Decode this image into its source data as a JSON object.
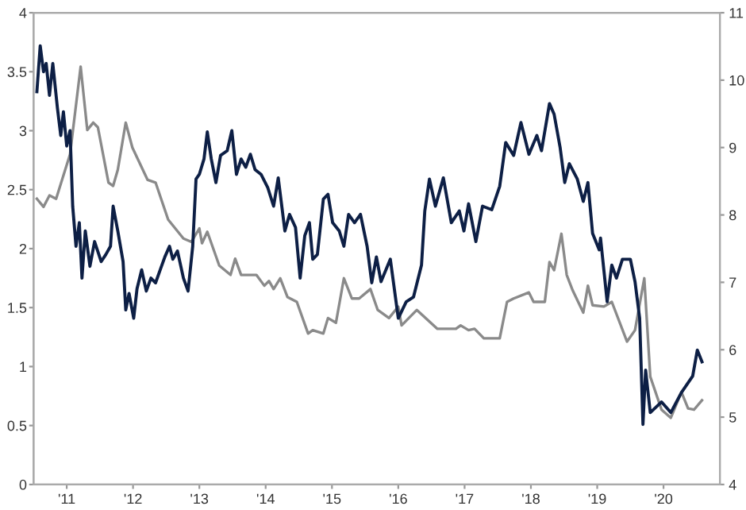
{
  "chart_data": {
    "type": "line",
    "xlim": [
      2010.5,
      2020.85
    ],
    "xticks": [
      {
        "value": 2011,
        "label": "'11"
      },
      {
        "value": 2012,
        "label": "'12"
      },
      {
        "value": 2013,
        "label": "'13"
      },
      {
        "value": 2014,
        "label": "'14"
      },
      {
        "value": 2015,
        "label": "'15"
      },
      {
        "value": 2016,
        "label": "'16"
      },
      {
        "value": 2017,
        "label": "'17"
      },
      {
        "value": 2018,
        "label": "'18"
      },
      {
        "value": 2019,
        "label": "'19"
      },
      {
        "value": 2020,
        "label": "'20"
      }
    ],
    "ylim": [
      0,
      4
    ],
    "yticks": [
      0,
      0.5,
      1,
      1.5,
      2,
      2.5,
      3,
      3.5,
      4
    ],
    "y2lim": [
      4,
      11
    ],
    "y2ticks": [
      4,
      5,
      6,
      7,
      8,
      9,
      10,
      11
    ],
    "grid": false,
    "series": [
      {
        "color": "#0d1f45",
        "axis": "y",
        "x": [
          2010.55,
          2010.6,
          2010.65,
          2010.69,
          2010.74,
          2010.79,
          2010.86,
          2010.91,
          2010.95,
          2011.0,
          2011.05,
          2011.09,
          2011.14,
          2011.19,
          2011.23,
          2011.28,
          2011.35,
          2011.42,
          2011.52,
          2011.59,
          2011.66,
          2011.7,
          2011.77,
          2011.85,
          2011.89,
          2011.94,
          2012.01,
          2012.06,
          2012.13,
          2012.2,
          2012.27,
          2012.34,
          2012.41,
          2012.48,
          2012.55,
          2012.6,
          2012.67,
          2012.76,
          2012.83,
          2012.9,
          2012.95,
          2013.0,
          2013.07,
          2013.12,
          2013.18,
          2013.25,
          2013.32,
          2013.42,
          2013.49,
          2013.56,
          2013.63,
          2013.7,
          2013.77,
          2013.84,
          2013.93,
          2014.03,
          2014.12,
          2014.19,
          2014.29,
          2014.36,
          2014.45,
          2014.52,
          2014.59,
          2014.66,
          2014.71,
          2014.78,
          2014.87,
          2014.94,
          2015.01,
          2015.11,
          2015.18,
          2015.25,
          2015.34,
          2015.43,
          2015.53,
          2015.6,
          2015.67,
          2015.74,
          2015.88,
          2016.0,
          2016.12,
          2016.23,
          2016.35,
          2016.4,
          2016.47,
          2016.56,
          2016.68,
          2016.8,
          2016.92,
          2016.99,
          2017.06,
          2017.17,
          2017.27,
          2017.41,
          2017.53,
          2017.62,
          2017.74,
          2017.85,
          2017.97,
          2018.09,
          2018.16,
          2018.28,
          2018.35,
          2018.44,
          2018.51,
          2018.58,
          2018.7,
          2018.79,
          2018.86,
          2018.93,
          2019.03,
          2019.05,
          2019.15,
          2019.22,
          2019.29,
          2019.38,
          2019.5,
          2019.57,
          2019.64,
          2019.69,
          2019.73,
          2019.8,
          2019.97,
          2020.11,
          2020.27,
          2020.44,
          2020.51,
          2020.58
        ],
        "values": [
          3.33,
          3.72,
          3.5,
          3.57,
          3.3,
          3.57,
          3.19,
          2.96,
          3.16,
          2.87,
          3.0,
          2.36,
          2.02,
          2.22,
          1.75,
          2.15,
          1.85,
          2.06,
          1.89,
          1.95,
          2.02,
          2.36,
          2.15,
          1.89,
          1.48,
          1.62,
          1.41,
          1.66,
          1.82,
          1.64,
          1.75,
          1.71,
          1.82,
          1.93,
          2.02,
          1.91,
          1.98,
          1.75,
          1.64,
          2.02,
          2.59,
          2.63,
          2.76,
          2.99,
          2.76,
          2.56,
          2.79,
          2.83,
          3.0,
          2.63,
          2.76,
          2.69,
          2.8,
          2.67,
          2.63,
          2.52,
          2.36,
          2.6,
          2.15,
          2.29,
          2.18,
          1.75,
          2.11,
          2.22,
          1.91,
          1.95,
          2.42,
          2.46,
          2.22,
          2.15,
          2.02,
          2.29,
          2.22,
          2.29,
          2.02,
          1.71,
          1.93,
          1.72,
          1.91,
          1.41,
          1.55,
          1.59,
          1.86,
          2.32,
          2.59,
          2.36,
          2.6,
          2.22,
          2.32,
          2.15,
          2.38,
          2.06,
          2.36,
          2.33,
          2.53,
          2.9,
          2.79,
          3.07,
          2.8,
          2.96,
          2.83,
          3.23,
          3.14,
          2.86,
          2.56,
          2.72,
          2.59,
          2.4,
          2.56,
          2.13,
          1.99,
          2.09,
          1.55,
          1.86,
          1.75,
          1.91,
          1.91,
          1.72,
          1.41,
          0.51,
          0.97,
          0.61,
          0.7,
          0.61,
          0.78,
          0.92,
          1.14,
          1.04
        ]
      },
      {
        "color": "#8a8a8a",
        "axis": "y2",
        "x": [
          2010.55,
          2010.65,
          2010.74,
          2010.84,
          2011.05,
          2011.21,
          2011.31,
          2011.4,
          2011.47,
          2011.63,
          2011.7,
          2011.77,
          2011.89,
          2011.99,
          2012.22,
          2012.34,
          2012.53,
          2012.76,
          2012.88,
          2013.0,
          2013.04,
          2013.12,
          2013.3,
          2013.47,
          2013.54,
          2013.63,
          2013.86,
          2013.98,
          2014.05,
          2014.12,
          2014.22,
          2014.33,
          2014.47,
          2014.64,
          2014.71,
          2014.87,
          2014.94,
          2015.06,
          2015.18,
          2015.3,
          2015.41,
          2015.58,
          2015.69,
          2015.86,
          2016.0,
          2016.05,
          2016.28,
          2016.59,
          2016.87,
          2016.94,
          2017.06,
          2017.15,
          2017.29,
          2017.53,
          2017.64,
          2017.74,
          2017.97,
          2018.04,
          2018.21,
          2018.28,
          2018.35,
          2018.46,
          2018.54,
          2018.63,
          2018.79,
          2018.86,
          2018.93,
          2019.1,
          2019.22,
          2019.45,
          2019.57,
          2019.71,
          2019.8,
          2019.97,
          2020.11,
          2020.27,
          2020.37,
          2020.46,
          2020.58
        ],
        "values": [
          8.24,
          8.12,
          8.29,
          8.24,
          8.9,
          10.2,
          9.26,
          9.37,
          9.3,
          8.48,
          8.43,
          8.67,
          9.37,
          9.0,
          8.52,
          8.48,
          7.93,
          7.65,
          7.6,
          7.8,
          7.58,
          7.75,
          7.25,
          7.11,
          7.35,
          7.11,
          7.11,
          6.95,
          7.02,
          6.9,
          7.06,
          6.78,
          6.71,
          6.24,
          6.29,
          6.24,
          6.47,
          6.4,
          7.06,
          6.76,
          6.76,
          6.9,
          6.59,
          6.47,
          6.64,
          6.36,
          6.59,
          6.31,
          6.31,
          6.36,
          6.29,
          6.31,
          6.17,
          6.17,
          6.71,
          6.76,
          6.85,
          6.71,
          6.71,
          7.3,
          7.18,
          7.72,
          7.11,
          6.88,
          6.55,
          6.95,
          6.66,
          6.64,
          6.71,
          6.12,
          6.29,
          7.06,
          5.6,
          5.11,
          4.99,
          5.37,
          5.13,
          5.11,
          5.25
        ]
      }
    ]
  }
}
